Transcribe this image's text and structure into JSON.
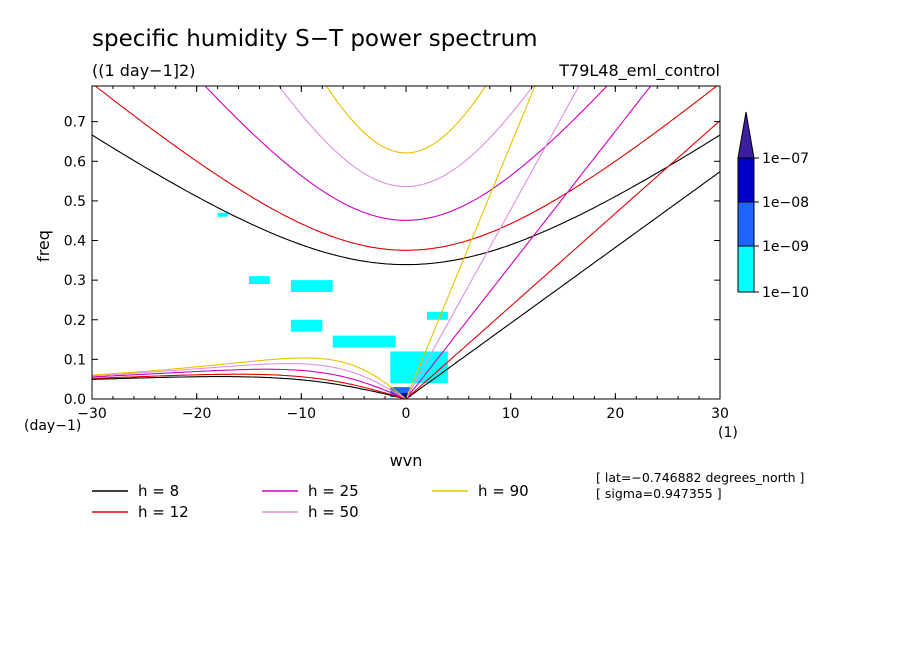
{
  "chart_data": {
    "type": "contour",
    "title": "specific humidity S−T power spectrum",
    "subtitle": "((1 day−1]2)",
    "run_label": "T79L48_eml_control",
    "xlabel": "wvn",
    "ylabel": "freq",
    "x_unit_label": "(1)",
    "y_unit_label": "(day−1)",
    "xlim": [
      -30,
      30
    ],
    "ylim": [
      0,
      0.79
    ],
    "x_ticks": [
      -30,
      -20,
      -10,
      0,
      10,
      20,
      30
    ],
    "x_tick_labels": [
      "−30",
      "−20",
      "−10",
      "0",
      "10",
      "20",
      "30"
    ],
    "y_ticks": [
      0,
      0.1,
      0.2,
      0.3,
      0.4,
      0.5,
      0.6,
      0.7
    ],
    "y_tick_labels": [
      "0.0",
      "0.1",
      "0.2",
      "0.3",
      "0.4",
      "0.5",
      "0.6",
      "0.7"
    ],
    "colorbar": {
      "labels": [
        "1e−07",
        "1e−08",
        "1e−09",
        "1e−10"
      ],
      "colors": [
        "#00ffff",
        "#1e64ff",
        "#0000c8",
        "#3c1ea0"
      ]
    },
    "series": [
      {
        "name": "h =  8",
        "color": "#000000"
      },
      {
        "name": "h = 12",
        "color": "#e00000"
      },
      {
        "name": "h = 25",
        "color": "#d000c0"
      },
      {
        "name": "h = 50",
        "color": "#e090e0"
      },
      {
        "name": "h = 90",
        "color": "#e8c000"
      }
    ],
    "annotations": [
      "[ lat=−0.746882 degrees_north ]",
      "[ sigma=0.947355 ]"
    ],
    "spectrum_patches": [
      {
        "level": 1,
        "x": [
          -1.5,
          4
        ],
        "y": [
          0.04,
          0.12
        ]
      },
      {
        "level": 1,
        "x": [
          -7,
          -1
        ],
        "y": [
          0.13,
          0.16
        ]
      },
      {
        "level": 1,
        "x": [
          -11,
          -8
        ],
        "y": [
          0.17,
          0.2
        ]
      },
      {
        "level": 1,
        "x": [
          -11,
          -7
        ],
        "y": [
          0.27,
          0.3
        ]
      },
      {
        "level": 1,
        "x": [
          -15,
          -13
        ],
        "y": [
          0.29,
          0.31
        ]
      },
      {
        "level": 1,
        "x": [
          -18,
          -17
        ],
        "y": [
          0.46,
          0.47
        ]
      },
      {
        "level": 1,
        "x": [
          2,
          4
        ],
        "y": [
          0.2,
          0.22
        ]
      },
      {
        "level": 2,
        "x": [
          -1.5,
          0.5
        ],
        "y": [
          0.005,
          0.03
        ]
      },
      {
        "level": 3,
        "x": [
          -0.5,
          0.2
        ],
        "y": [
          0.0,
          0.015
        ]
      }
    ]
  }
}
